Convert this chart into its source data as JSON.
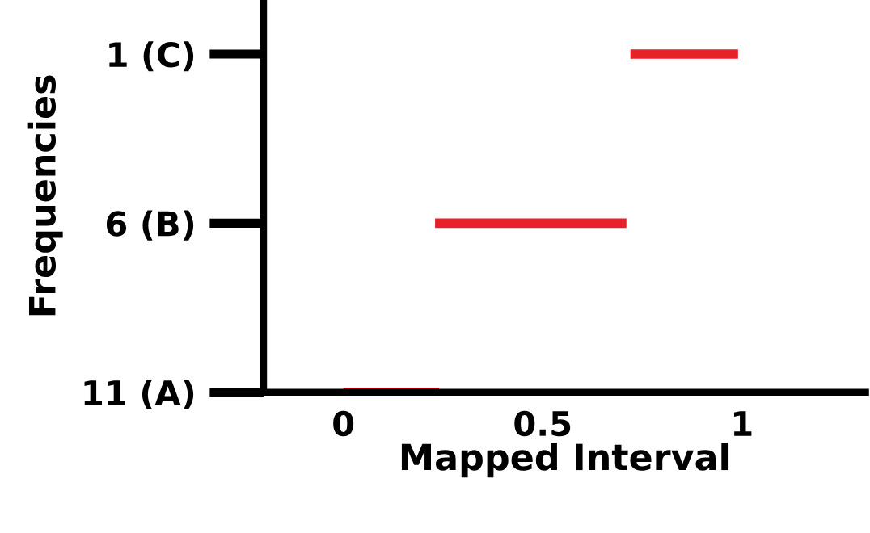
{
  "chart_data": {
    "type": "bar",
    "orientation": "horizontal",
    "xlabel": "Mapped Interval",
    "ylabel": "Frequencies",
    "categories": [
      "1 (C)",
      "6 (B)",
      "11 (A)"
    ],
    "base": [
      0.72,
      0.23,
      0
    ],
    "values": [
      0.27,
      0.48,
      0.24
    ],
    "color": "#e8202a",
    "xlim": [
      -0.2,
      1.31
    ],
    "xticks": [
      0,
      0.5,
      1
    ],
    "grid": false,
    "legend": false
  }
}
